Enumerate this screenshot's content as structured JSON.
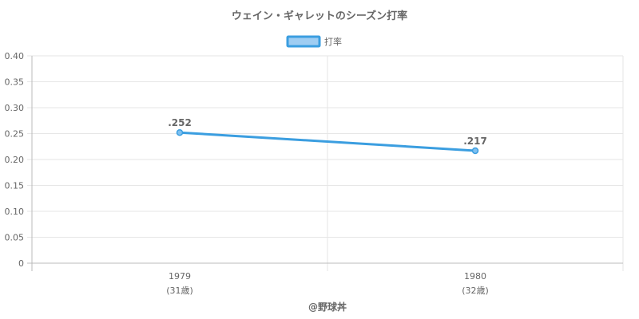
{
  "title": "ウェイン・ギャレットのシーズン打率",
  "credit": "@野球丼",
  "colors": {
    "line": "#3b9ee0",
    "legend_fill": "#9fcdf2",
    "point_fill": "#7fc0f0",
    "grid": "#e6e6e6",
    "axis": "#bbbbbb",
    "text": "#666666"
  },
  "chart_data": {
    "type": "line",
    "title": "ウェイン・ギャレットのシーズン打率",
    "categories": [
      "1979",
      "1980"
    ],
    "category_sublabels": [
      "(31歳)",
      "(32歳)"
    ],
    "series": [
      {
        "name": "打率",
        "values": [
          0.252,
          0.217
        ],
        "labels": [
          ".252",
          ".217"
        ]
      }
    ],
    "y_ticks": [
      "0",
      "0.05",
      "0.10",
      "0.15",
      "0.20",
      "0.25",
      "0.30",
      "0.35",
      "0.40"
    ],
    "ylim": [
      0,
      0.4
    ],
    "xlabel": "",
    "ylabel": "",
    "grid": true,
    "legend_position": "top"
  }
}
